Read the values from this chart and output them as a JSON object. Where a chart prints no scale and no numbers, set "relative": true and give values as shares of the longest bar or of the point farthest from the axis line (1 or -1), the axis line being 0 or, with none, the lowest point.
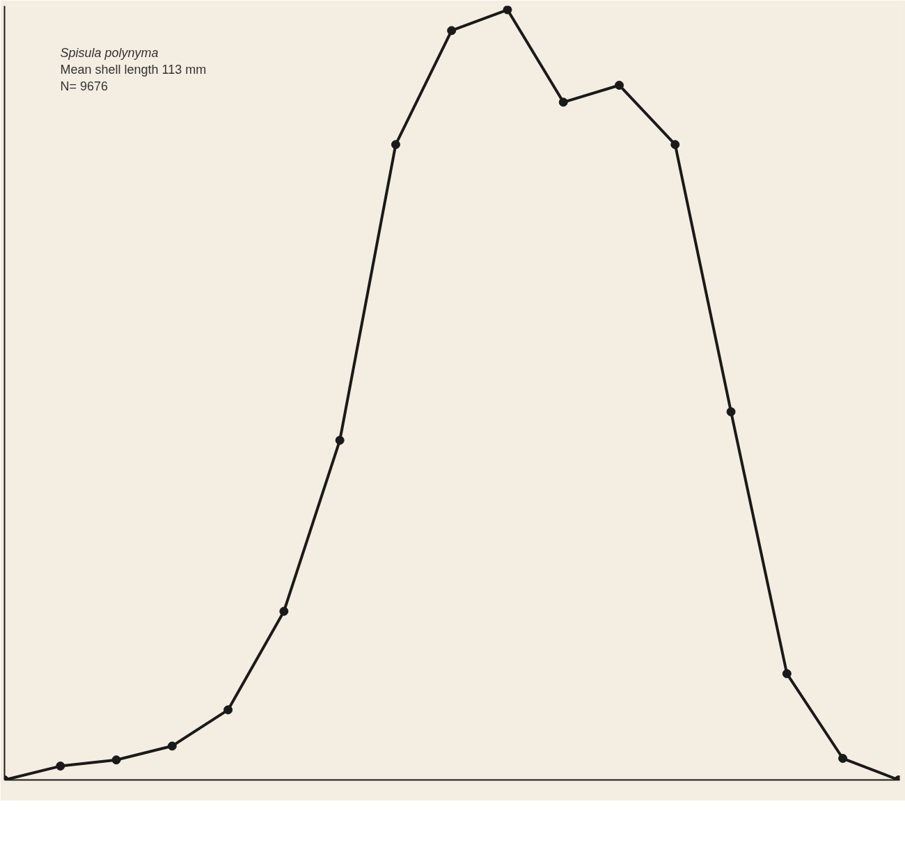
{
  "chart_data": {
    "type": "line",
    "relative": true,
    "marker": "circle",
    "line_style": "solid",
    "grid": false,
    "categories": [
      null,
      null,
      null,
      null,
      null,
      null,
      null,
      null,
      null,
      null,
      null,
      null,
      null,
      null,
      null,
      null,
      null
    ],
    "series": [
      {
        "color": "#1a1a1a",
        "values": [
          0,
          0.018,
          0.026,
          0.044,
          0.091,
          0.219,
          0.441,
          0.825,
          0.973,
          1,
          0.88,
          0.902,
          0.825,
          0.478,
          0.138,
          0.028,
          0
        ]
      }
    ],
    "annotations": [
      "Spisula polynyma",
      "Mean shell length 113 mm",
      "N= 9676"
    ]
  }
}
